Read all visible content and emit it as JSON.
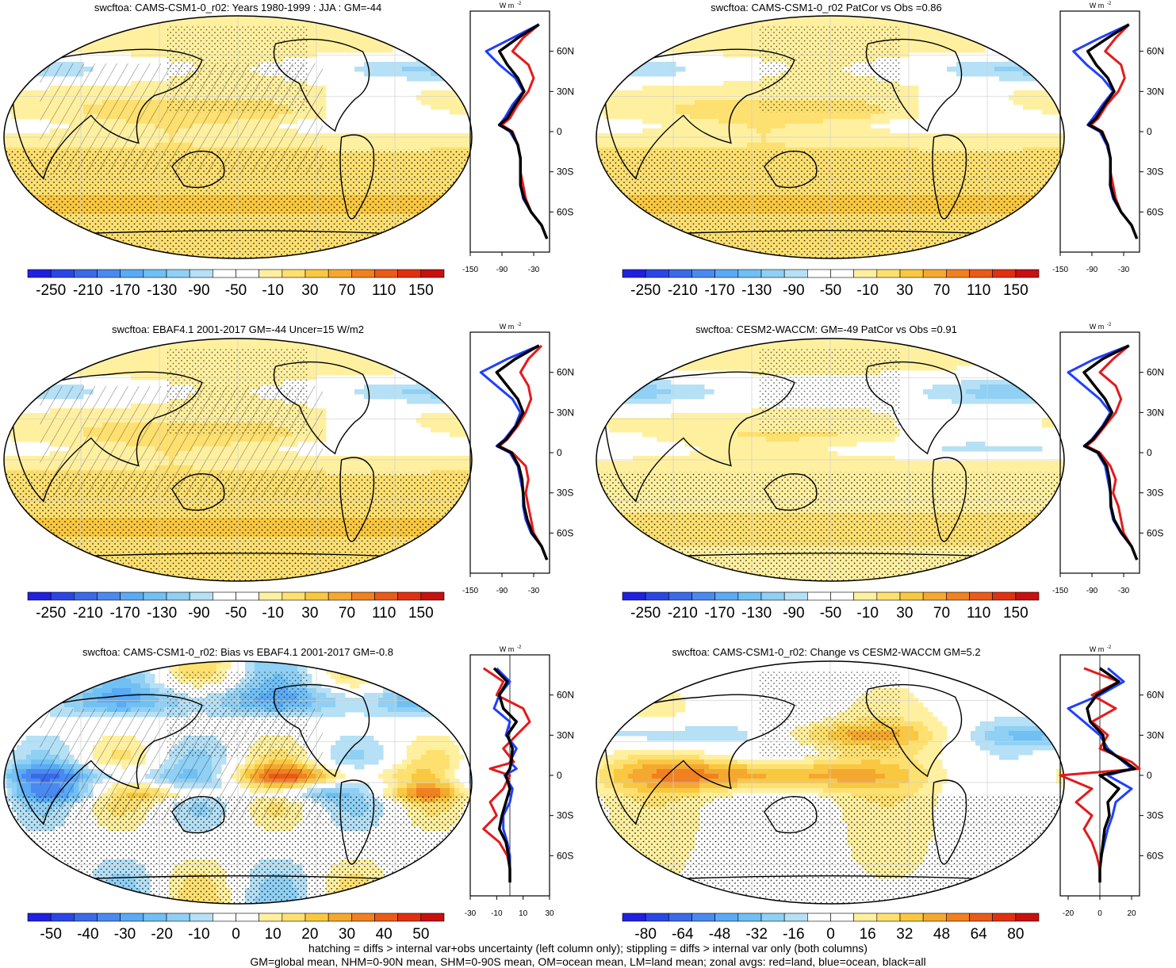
{
  "colors": {
    "rdbu": [
      "#2020e0",
      "#2a46e6",
      "#3a6ae8",
      "#4a8af0",
      "#5aaaf5",
      "#70c0f4",
      "#8fd0f4",
      "#b5e0f5",
      "#ffffff",
      "#ffffff",
      "#fff0a0",
      "#fde070",
      "#f9c840",
      "#f5a830",
      "#f08020",
      "#ea5a18",
      "#e03010",
      "#c81010"
    ],
    "land_line": "#000000",
    "zonal_land": "#e41a1c",
    "zonal_ocean": "#1f3fff",
    "zonal_all": "#000000"
  },
  "panels": [
    {
      "id": "p1",
      "title": "swcftoa: CAMS-CSM1-0_r02: Years 1980-1999 : JJA : GM=-44",
      "colorbar_labels": [
        "-250",
        "-210",
        "-170",
        "-130",
        "-90",
        "-50",
        "-10",
        "30",
        "70",
        "110",
        "150"
      ],
      "zonal_xticks": [
        "-150",
        "-90",
        "-30"
      ],
      "zonal_xlim": [
        -150,
        0
      ],
      "zonal_units": "W m",
      "lat_labels": [
        "60N",
        "30N",
        "0",
        "30S",
        "60S"
      ],
      "pattern": "bias_abs",
      "hatch": true
    },
    {
      "id": "p2",
      "title": "swcftoa: CAMS-CSM1-0_r02 PatCor vs Obs =0.86",
      "colorbar_labels": [
        "-250",
        "-210",
        "-170",
        "-130",
        "-90",
        "-50",
        "-10",
        "30",
        "70",
        "110",
        "150"
      ],
      "zonal_xticks": [
        "-150",
        "-90",
        "-30"
      ],
      "zonal_xlim": [
        -150,
        0
      ],
      "zonal_units": "W m",
      "lat_labels": [
        "60N",
        "30N",
        "0",
        "30S",
        "60S"
      ],
      "pattern": "abs2",
      "hatch": false
    },
    {
      "id": "p3",
      "title": "swcftoa: EBAF4.1 2001-2017 GM=-44 Uncer=15 W/m2",
      "colorbar_labels": [
        "-250",
        "-210",
        "-170",
        "-130",
        "-90",
        "-50",
        "-10",
        "30",
        "70",
        "110",
        "150"
      ],
      "zonal_xticks": [
        "-150",
        "-90",
        "-30"
      ],
      "zonal_xlim": [
        -150,
        0
      ],
      "zonal_units": "W m",
      "lat_labels": [
        "60N",
        "30N",
        "0",
        "30S",
        "60S"
      ],
      "pattern": "abs3",
      "hatch": true
    },
    {
      "id": "p4",
      "title": "swcftoa: CESM2-WACCM: GM=-49 PatCor vs Obs =0.91",
      "colorbar_labels": [
        "-250",
        "-210",
        "-170",
        "-130",
        "-90",
        "-50",
        "-10",
        "30",
        "70",
        "110",
        "150"
      ],
      "zonal_xticks": [
        "-150",
        "-90",
        "-30"
      ],
      "zonal_xlim": [
        -150,
        0
      ],
      "zonal_units": "W m",
      "lat_labels": [
        "60N",
        "30N",
        "0",
        "30S",
        "60S"
      ],
      "pattern": "abs4",
      "hatch": false
    },
    {
      "id": "p5",
      "title": "swcftoa: CAMS-CSM1-0_r02: Bias vs EBAF4.1 2001-2017 GM=-0.8",
      "colorbar_labels": [
        "-50",
        "-40",
        "-30",
        "-20",
        "-10",
        "0",
        "10",
        "20",
        "30",
        "40",
        "50"
      ],
      "zonal_xticks": [
        "-30",
        "-10",
        "10",
        "30"
      ],
      "zonal_xlim": [
        -30,
        30
      ],
      "zonal_units": "W m",
      "lat_labels": [
        "60N",
        "30N",
        "0",
        "30S",
        "60S"
      ],
      "pattern": "diff1",
      "hatch": true
    },
    {
      "id": "p6",
      "title": "swcftoa: CAMS-CSM1-0_r02: Change vs CESM2-WACCM GM=5.2",
      "colorbar_labels": [
        "-80",
        "-64",
        "-48",
        "-32",
        "-16",
        "0",
        "16",
        "32",
        "48",
        "64",
        "80"
      ],
      "zonal_xticks": [
        "-20",
        "0",
        "20"
      ],
      "zonal_xlim": [
        -25,
        25
      ],
      "zonal_units": "W m",
      "lat_labels": [
        "60N",
        "30N",
        "0",
        "30S",
        "60S"
      ],
      "pattern": "diff2",
      "hatch": false
    }
  ],
  "chart_data": [
    {
      "type": "line",
      "title": "swcftoa: CAMS-CSM1-0_r02: Years 1980-1999 : JJA : GM=-44 (zonal average)",
      "y_lat": [
        80,
        70,
        60,
        50,
        40,
        30,
        20,
        10,
        5,
        0,
        -10,
        -20,
        -30,
        -40,
        -50,
        -60,
        -70,
        -80
      ],
      "series": [
        {
          "name": "red=land",
          "values": [
            -20,
            -50,
            -70,
            -40,
            -30,
            -40,
            -60,
            -75,
            -90,
            -70,
            -60,
            -55,
            -55,
            -50,
            -45,
            -35,
            -15,
            -5
          ]
        },
        {
          "name": "blue=ocean",
          "values": [
            -20,
            -70,
            -120,
            -95,
            -65,
            -50,
            -70,
            -85,
            -95,
            -75,
            -60,
            -55,
            -55,
            -55,
            -50,
            -35,
            -15,
            -5
          ]
        },
        {
          "name": "black=all",
          "values": [
            -20,
            -60,
            -95,
            -80,
            -60,
            -48,
            -65,
            -80,
            -95,
            -72,
            -60,
            -55,
            -55,
            -55,
            -48,
            -35,
            -15,
            -5
          ]
        }
      ]
    },
    {
      "type": "line",
      "title": "swcftoa: CAMS-CSM1-0_r02 PatCor vs Obs =0.86 (zonal average)",
      "y_lat": [
        80,
        70,
        60,
        50,
        40,
        30,
        20,
        10,
        5,
        0,
        -10,
        -20,
        -30,
        -40,
        -50,
        -60,
        -70,
        -80
      ],
      "series": [
        {
          "name": "red=land",
          "values": [
            -20,
            -45,
            -65,
            -35,
            -28,
            -40,
            -62,
            -78,
            -92,
            -70,
            -60,
            -55,
            -55,
            -50,
            -45,
            -35,
            -15,
            -5
          ]
        },
        {
          "name": "blue=ocean",
          "values": [
            -20,
            -75,
            -125,
            -100,
            -70,
            -50,
            -70,
            -88,
            -98,
            -75,
            -62,
            -55,
            -55,
            -56,
            -50,
            -35,
            -15,
            -5
          ]
        },
        {
          "name": "black=all",
          "values": [
            -20,
            -60,
            -98,
            -82,
            -60,
            -48,
            -66,
            -82,
            -96,
            -72,
            -60,
            -55,
            -55,
            -55,
            -48,
            -35,
            -15,
            -5
          ]
        }
      ]
    },
    {
      "type": "line",
      "title": "swcftoa: EBAF4.1 2001-2017 GM=-44 Uncer=15 W/m2 (zonal average)",
      "y_lat": [
        80,
        70,
        60,
        50,
        40,
        30,
        20,
        10,
        5,
        0,
        -10,
        -20,
        -30,
        -40,
        -50,
        -60,
        -70,
        -80
      ],
      "series": [
        {
          "name": "red=land",
          "values": [
            -15,
            -40,
            -55,
            -40,
            -35,
            -45,
            -60,
            -80,
            -95,
            -70,
            -45,
            -40,
            -45,
            -40,
            -35,
            -30,
            -15,
            -5
          ]
        },
        {
          "name": "blue=ocean",
          "values": [
            -20,
            -80,
            -130,
            -100,
            -70,
            -55,
            -65,
            -85,
            -100,
            -75,
            -60,
            -55,
            -50,
            -50,
            -45,
            -35,
            -15,
            -5
          ]
        },
        {
          "name": "black=all",
          "values": [
            -20,
            -65,
            -100,
            -80,
            -60,
            -50,
            -63,
            -82,
            -98,
            -72,
            -58,
            -52,
            -50,
            -48,
            -42,
            -33,
            -15,
            -5
          ]
        }
      ]
    },
    {
      "type": "line",
      "title": "swcftoa: CESM2-WACCM: GM=-49 PatCor vs Obs =0.91 (zonal average)",
      "y_lat": [
        80,
        70,
        60,
        50,
        40,
        30,
        20,
        10,
        5,
        0,
        -10,
        -20,
        -30,
        -40,
        -50,
        -60,
        -70,
        -80
      ],
      "series": [
        {
          "name": "red=land",
          "values": [
            -20,
            -50,
            -75,
            -45,
            -35,
            -45,
            -65,
            -85,
            -100,
            -75,
            -55,
            -45,
            -50,
            -40,
            -35,
            -30,
            -15,
            -5
          ]
        },
        {
          "name": "blue=ocean",
          "values": [
            -20,
            -85,
            -135,
            -105,
            -75,
            -55,
            -70,
            -90,
            -105,
            -80,
            -65,
            -60,
            -55,
            -55,
            -50,
            -35,
            -15,
            -5
          ]
        },
        {
          "name": "black=all",
          "values": [
            -20,
            -70,
            -105,
            -85,
            -65,
            -52,
            -68,
            -88,
            -104,
            -78,
            -62,
            -57,
            -55,
            -54,
            -48,
            -34,
            -15,
            -5
          ]
        }
      ]
    },
    {
      "type": "line",
      "title": "swcftoa: CAMS-CSM1-0_r02: Bias vs EBAF4.1 2001-2017 GM=-0.8 (zonal average)",
      "y_lat": [
        80,
        70,
        60,
        50,
        40,
        30,
        20,
        10,
        5,
        0,
        -10,
        -20,
        -30,
        -40,
        -50,
        -60,
        -70,
        -80
      ],
      "series": [
        {
          "name": "red=land",
          "values": [
            -20,
            -5,
            -10,
            10,
            15,
            5,
            -5,
            3,
            -15,
            0,
            -5,
            -15,
            -10,
            -20,
            -8,
            -2,
            0,
            0
          ]
        },
        {
          "name": "blue=ocean",
          "values": [
            -10,
            0,
            -8,
            -12,
            0,
            -3,
            5,
            0,
            5,
            -4,
            2,
            0,
            -5,
            -5,
            -2,
            0,
            0,
            0
          ]
        },
        {
          "name": "black=all",
          "values": [
            -12,
            -2,
            -8,
            -5,
            5,
            -2,
            2,
            1,
            0,
            -3,
            0,
            -3,
            -6,
            -8,
            -3,
            -1,
            0,
            0
          ]
        }
      ]
    },
    {
      "type": "line",
      "title": "swcftoa: CAMS-CSM1-0_r02: Change vs CESM2-WACCM GM=5.2 (zonal average)",
      "y_lat": [
        80,
        70,
        60,
        50,
        40,
        30,
        20,
        10,
        5,
        0,
        -10,
        -20,
        -30,
        -40,
        -50,
        -60,
        -70,
        -80
      ],
      "series": [
        {
          "name": "red=land",
          "values": [
            -10,
            12,
            -5,
            10,
            -5,
            5,
            0,
            20,
            25,
            -25,
            -5,
            -15,
            -5,
            -10,
            -5,
            -2,
            0,
            0
          ]
        },
        {
          "name": "blue=ocean",
          "values": [
            5,
            15,
            0,
            -20,
            -10,
            0,
            5,
            15,
            20,
            5,
            20,
            10,
            8,
            5,
            3,
            1,
            0,
            0
          ]
        },
        {
          "name": "black=all",
          "values": [
            0,
            12,
            -2,
            -8,
            -6,
            2,
            3,
            16,
            22,
            0,
            12,
            5,
            6,
            3,
            2,
            1,
            0,
            0
          ]
        }
      ]
    }
  ],
  "footnote": {
    "line1": "hatching = diffs > internal var+obs uncertainty (left column only); stippling = diffs > internal var only (both columns)",
    "line2": "GM=global mean, NHM=0-90N mean, SHM=0-90S mean, OM=ocean mean, LM=land mean; zonal avgs: red=land, blue=ocean, black=all"
  }
}
